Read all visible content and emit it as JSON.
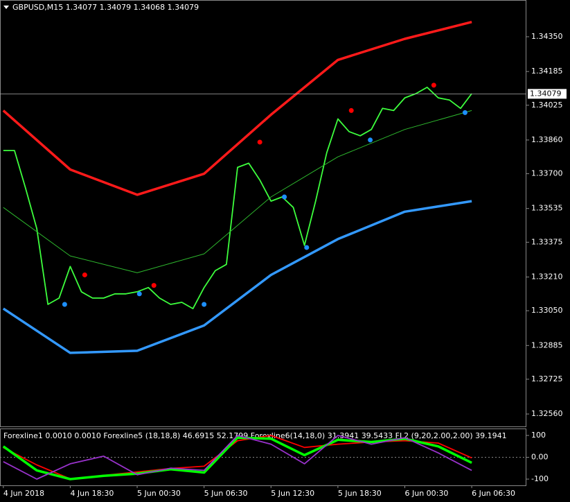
{
  "header": "GBPUSD,M15  1.34077 1.34079 1.34068 1.34079",
  "chart_data": [
    {
      "type": "line",
      "xlim": [
        -0.3,
        46.9
      ],
      "ylim": [
        1.32501,
        1.34521
      ],
      "yticks": [
        {
          "value": 1.3435,
          "label": "1.34350"
        },
        1.34185,
        1.34025,
        {
          "value": 1.3386,
          "label": "1.33860"
        },
        {
          "value": 1.337,
          "label": "1.33700"
        },
        1.33535,
        1.33375,
        {
          "value": 1.3321,
          "label": "1.33210"
        },
        {
          "value": 1.3305,
          "label": "1.33050"
        },
        1.32885,
        1.32725,
        {
          "value": 1.3256,
          "label": "1.32560"
        }
      ],
      "current_price": 1.34079,
      "series": [
        {
          "style": "line",
          "color": "#3dff3d",
          "x": [
            0,
            1,
            2,
            3,
            4,
            5,
            6,
            7,
            8,
            9,
            10,
            11,
            12,
            13,
            14,
            15,
            16,
            17,
            18,
            19,
            20,
            21,
            22,
            23,
            24,
            25,
            26,
            27,
            28,
            29,
            30,
            31,
            32,
            33,
            34,
            35,
            36,
            37,
            38,
            39,
            40,
            41,
            42
          ],
          "values": [
            1.3381,
            1.3381,
            1.3363,
            1.3344,
            1.3308,
            1.3311,
            1.3326,
            1.3314,
            1.3311,
            1.3311,
            1.3313,
            1.3313,
            1.3314,
            1.3316,
            1.3311,
            1.3308,
            1.3309,
            1.3306,
            1.3316,
            1.3324,
            1.3327,
            1.3373,
            1.3375,
            1.3367,
            1.3357,
            1.3359,
            1.3354,
            1.3336,
            1.3357,
            1.338,
            1.3396,
            1.339,
            1.3388,
            1.3391,
            1.3401,
            1.34,
            1.3406,
            1.3408,
            1.3411,
            1.3406,
            1.3405,
            1.3401,
            1.3408
          ]
        },
        {
          "style": "band",
          "color": "#ff1a1a",
          "x": [
            0,
            6,
            12,
            18,
            24,
            30,
            36,
            42
          ],
          "values": [
            1.34,
            1.3372,
            1.336,
            1.337,
            1.3398,
            1.3424,
            1.3434,
            1.3442
          ]
        },
        {
          "style": "thin",
          "color": "#2eb82e",
          "x": [
            0,
            6,
            12,
            18,
            24,
            30,
            36,
            42
          ],
          "values": [
            1.3354,
            1.3331,
            1.3323,
            1.3332,
            1.3359,
            1.3378,
            1.3391,
            1.34
          ]
        },
        {
          "style": "band",
          "color": "#3399ff",
          "x": [
            0,
            6,
            12,
            18,
            24,
            30,
            36,
            42
          ],
          "values": [
            1.3306,
            1.3285,
            1.3286,
            1.3298,
            1.3322,
            1.3339,
            1.3352,
            1.3357
          ]
        },
        {
          "style": "markers",
          "color": "#ff0000",
          "x": [
            7.3,
            13.5,
            23,
            31.2,
            38.6
          ],
          "values": [
            1.3322,
            1.3317,
            1.3385,
            1.34,
            1.3412
          ]
        },
        {
          "style": "markers",
          "color": "#1e90ff",
          "x": [
            5.5,
            12.2,
            18,
            25.2,
            27.2,
            32.9,
            41.4
          ],
          "values": [
            1.3308,
            1.3313,
            1.3308,
            1.3359,
            1.3335,
            1.3386,
            1.3399
          ]
        }
      ]
    },
    {
      "type": "line",
      "title": "Forexline1 0.0010 0.0010  Forexline5 (18,18,8) 46.6915 52.1799  Forexline6(14,18,0) 31.3941 39.5433  FL2 (9,20,2.00,2.00) 39.1941",
      "xlim": [
        -0.3,
        46.9
      ],
      "xticks": [
        {
          "value": 0,
          "label": "4 Jun 2018"
        },
        {
          "value": 6,
          "label": "4 Jun 18:30"
        },
        {
          "value": 12,
          "label": "5 Jun 00:30"
        },
        {
          "value": 18,
          "label": "5 Jun 06:30"
        },
        {
          "value": 24,
          "label": "5 Jun 12:30"
        },
        {
          "value": 30,
          "label": "5 Jun 18:30"
        },
        {
          "value": 36,
          "label": "6 Jun 00:30"
        },
        {
          "value": 42,
          "label": "6 Jun 06:30"
        }
      ],
      "ylim": [
        -128.6,
        128.6
      ],
      "yticks": [
        100,
        {
          "value": 0,
          "label": "0.00"
        },
        -100
      ],
      "series": [
        {
          "style": "line",
          "color": "#ff0000",
          "x": [
            0,
            3,
            6,
            9,
            12,
            15,
            18,
            21,
            24,
            27,
            30,
            33,
            36,
            39,
            42
          ],
          "values": [
            44,
            -35,
            -99,
            -83,
            -67,
            -51,
            -41,
            76,
            100,
            45,
            60,
            70,
            76,
            65,
            -3
          ]
        },
        {
          "style": "band",
          "color": "#00ff00",
          "x": [
            0,
            3,
            6,
            9,
            12,
            15,
            18,
            21,
            24,
            27,
            30,
            33,
            36,
            39,
            42
          ],
          "values": [
            50,
            -60,
            -100,
            -85,
            -75,
            -55,
            -70,
            90,
            85,
            10,
            80,
            70,
            85,
            50,
            -25
          ]
        },
        {
          "style": "line",
          "color": "#9932cc",
          "x": [
            0,
            3,
            6,
            9,
            12,
            15,
            18,
            21,
            24,
            27,
            30,
            33,
            36,
            39,
            42
          ],
          "values": [
            -20,
            -100,
            -30,
            5,
            -80,
            -50,
            -60,
            100,
            60,
            -30,
            100,
            60,
            90,
            20,
            -60
          ]
        }
      ]
    }
  ]
}
